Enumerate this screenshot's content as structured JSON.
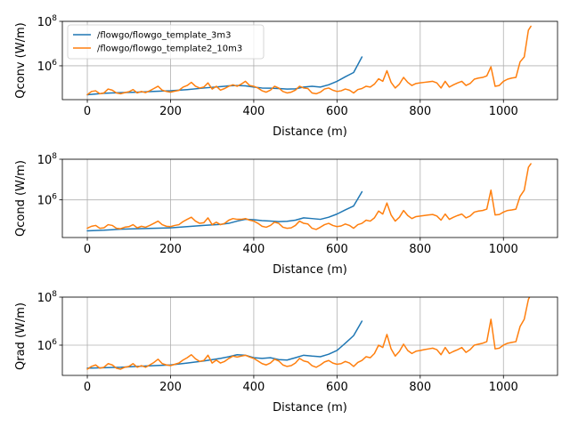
{
  "colors": {
    "series_0": "#1f77b4",
    "series_1": "#ff7f0e",
    "grid": "#b0b0b0"
  },
  "chart_data": [
    {
      "type": "line",
      "ylabel": "Qconv (W/m)",
      "xlabel": "Distance (m)",
      "yscale": "log",
      "grid": true,
      "xlim": [
        -60,
        1130
      ],
      "ylim": [
        30000,
        100000000
      ],
      "xticks": [
        0,
        200,
        400,
        600,
        800,
        1000
      ],
      "xtick_labels": [
        "0",
        "200",
        "400",
        "600",
        "800",
        "1000"
      ],
      "yticks": [
        1000000,
        100000000
      ],
      "ytick_labels": [
        "10^6",
        "10^8"
      ],
      "legend": {
        "placement": "upper-left",
        "entries": [
          "/flowgo/flowgo_template_3m3",
          "/flowgo/flowgo_template2_10m3"
        ]
      },
      "series": [
        {
          "name": "/flowgo/flowgo_template_3m3",
          "x": [
            0,
            40,
            80,
            120,
            160,
            200,
            240,
            280,
            320,
            340,
            360,
            380,
            400,
            420,
            440,
            460,
            480,
            500,
            520,
            540,
            560,
            580,
            600,
            620,
            640,
            660
          ],
          "y": [
            50000,
            58000,
            62000,
            65000,
            70000,
            75000,
            85000,
            100000,
            115000,
            125000,
            130000,
            125000,
            110000,
            100000,
            98000,
            95000,
            90000,
            92000,
            110000,
            120000,
            110000,
            140000,
            200000,
            320000,
            500000,
            2500000
          ]
        },
        {
          "name": "/flowgo/flowgo_template2_10m3",
          "x": [
            0,
            10,
            20,
            30,
            40,
            50,
            60,
            70,
            80,
            90,
            100,
            110,
            120,
            130,
            140,
            150,
            160,
            170,
            180,
            190,
            200,
            210,
            220,
            230,
            240,
            250,
            260,
            270,
            280,
            290,
            300,
            310,
            320,
            330,
            340,
            350,
            360,
            370,
            380,
            390,
            400,
            410,
            420,
            430,
            440,
            450,
            460,
            470,
            480,
            490,
            500,
            510,
            520,
            530,
            540,
            550,
            560,
            570,
            580,
            590,
            600,
            610,
            620,
            630,
            640,
            650,
            660,
            670,
            680,
            690,
            700,
            710,
            720,
            730,
            740,
            750,
            760,
            770,
            780,
            790,
            800,
            810,
            820,
            830,
            840,
            850,
            860,
            870,
            880,
            890,
            900,
            910,
            920,
            930,
            940,
            950,
            960,
            970,
            980,
            990,
            1000,
            1010,
            1020,
            1030,
            1040,
            1050,
            1060,
            1066
          ],
          "y": [
            50000,
            70000,
            75000,
            55000,
            60000,
            90000,
            80000,
            60000,
            55000,
            62000,
            68000,
            85000,
            60000,
            70000,
            62000,
            75000,
            95000,
            120000,
            80000,
            70000,
            65000,
            72000,
            78000,
            110000,
            130000,
            180000,
            120000,
            100000,
            110000,
            170000,
            90000,
            120000,
            80000,
            95000,
            120000,
            140000,
            120000,
            150000,
            200000,
            130000,
            120000,
            100000,
            75000,
            65000,
            80000,
            120000,
            100000,
            70000,
            60000,
            65000,
            80000,
            120000,
            100000,
            95000,
            60000,
            55000,
            65000,
            90000,
            100000,
            80000,
            70000,
            75000,
            90000,
            80000,
            60000,
            85000,
            95000,
            120000,
            110000,
            150000,
            260000,
            200000,
            600000,
            180000,
            100000,
            150000,
            300000,
            180000,
            130000,
            160000,
            170000,
            180000,
            190000,
            200000,
            170000,
            100000,
            200000,
            110000,
            140000,
            170000,
            200000,
            130000,
            160000,
            250000,
            280000,
            300000,
            350000,
            900000,
            120000,
            130000,
            200000,
            250000,
            280000,
            300000,
            1500000,
            2500000,
            40000000,
            60000000
          ]
        }
      ]
    },
    {
      "type": "line",
      "ylabel": "Qcond (W/m)",
      "xlabel": "Distance (m)",
      "yscale": "log",
      "grid": true,
      "xlim": [
        -60,
        1130
      ],
      "ylim": [
        14000,
        100000000
      ],
      "xticks": [
        0,
        200,
        400,
        600,
        800,
        1000
      ],
      "xtick_labels": [
        "0",
        "200",
        "400",
        "600",
        "800",
        "1000"
      ],
      "yticks": [
        1000000,
        100000000
      ],
      "ytick_labels": [
        "10^6",
        "10^8"
      ],
      "series": [
        {
          "name": "/flowgo/flowgo_template_3m3",
          "x": [
            0,
            40,
            80,
            120,
            160,
            200,
            240,
            280,
            320,
            340,
            360,
            380,
            400,
            420,
            440,
            460,
            480,
            500,
            520,
            540,
            560,
            580,
            600,
            620,
            640,
            660
          ],
          "y": [
            30000,
            32000,
            36000,
            38000,
            40000,
            42000,
            48000,
            55000,
            62000,
            70000,
            90000,
            110000,
            105000,
            95000,
            90000,
            85000,
            88000,
            100000,
            130000,
            120000,
            110000,
            140000,
            200000,
            320000,
            500000,
            2500000
          ]
        },
        {
          "name": "/flowgo/flowgo_template2_10m3",
          "x": [
            0,
            10,
            20,
            30,
            40,
            50,
            60,
            70,
            80,
            90,
            100,
            110,
            120,
            130,
            140,
            150,
            160,
            170,
            180,
            190,
            200,
            210,
            220,
            230,
            240,
            250,
            260,
            270,
            280,
            290,
            300,
            310,
            320,
            330,
            340,
            350,
            360,
            370,
            380,
            390,
            400,
            410,
            420,
            430,
            440,
            450,
            460,
            470,
            480,
            490,
            500,
            510,
            520,
            530,
            540,
            550,
            560,
            570,
            580,
            590,
            600,
            610,
            620,
            630,
            640,
            650,
            660,
            670,
            680,
            690,
            700,
            710,
            720,
            730,
            740,
            750,
            760,
            770,
            780,
            790,
            800,
            810,
            820,
            830,
            840,
            850,
            860,
            870,
            880,
            890,
            900,
            910,
            920,
            930,
            940,
            950,
            960,
            970,
            980,
            990,
            1000,
            1010,
            1020,
            1030,
            1040,
            1050,
            1060,
            1066
          ],
          "y": [
            40000,
            50000,
            55000,
            40000,
            42000,
            60000,
            55000,
            40000,
            38000,
            45000,
            48000,
            60000,
            42000,
            50000,
            45000,
            55000,
            70000,
            90000,
            60000,
            50000,
            48000,
            55000,
            60000,
            85000,
            110000,
            140000,
            90000,
            70000,
            75000,
            130000,
            60000,
            80000,
            60000,
            70000,
            100000,
            120000,
            110000,
            110000,
            120000,
            100000,
            90000,
            70000,
            50000,
            45000,
            55000,
            80000,
            70000,
            45000,
            40000,
            42000,
            55000,
            90000,
            70000,
            65000,
            40000,
            35000,
            45000,
            60000,
            70000,
            55000,
            48000,
            52000,
            65000,
            55000,
            40000,
            60000,
            70000,
            100000,
            90000,
            130000,
            280000,
            200000,
            700000,
            180000,
            90000,
            140000,
            300000,
            170000,
            120000,
            150000,
            160000,
            170000,
            180000,
            190000,
            160000,
            100000,
            200000,
            110000,
            140000,
            170000,
            200000,
            130000,
            160000,
            250000,
            280000,
            300000,
            350000,
            3000000,
            180000,
            190000,
            250000,
            300000,
            320000,
            350000,
            1500000,
            3000000,
            40000000,
            60000000
          ]
        }
      ]
    },
    {
      "type": "line",
      "ylabel": "Qrad (W/m)",
      "xlabel": "Distance (m)",
      "yscale": "log",
      "grid": true,
      "xlim": [
        -60,
        1130
      ],
      "ylim": [
        55000,
        100000000
      ],
      "xticks": [
        0,
        200,
        400,
        600,
        800,
        1000
      ],
      "xtick_labels": [
        "0",
        "200",
        "400",
        "600",
        "800",
        "1000"
      ],
      "yticks": [
        1000000,
        100000000
      ],
      "ytick_labels": [
        "10^6",
        "10^8"
      ],
      "series": [
        {
          "name": "/flowgo/flowgo_template_3m3",
          "x": [
            0,
            40,
            80,
            120,
            160,
            200,
            240,
            280,
            320,
            340,
            360,
            380,
            400,
            420,
            440,
            460,
            480,
            500,
            520,
            540,
            560,
            580,
            600,
            620,
            640,
            660
          ],
          "y": [
            110000,
            115000,
            120000,
            130000,
            140000,
            150000,
            180000,
            220000,
            280000,
            330000,
            400000,
            380000,
            300000,
            280000,
            300000,
            250000,
            240000,
            300000,
            380000,
            350000,
            330000,
            420000,
            600000,
            1200000,
            2500000,
            10000000
          ]
        },
        {
          "name": "/flowgo/flowgo_template2_10m3",
          "x": [
            0,
            10,
            20,
            30,
            40,
            50,
            60,
            70,
            80,
            90,
            100,
            110,
            120,
            130,
            140,
            150,
            160,
            170,
            180,
            190,
            200,
            210,
            220,
            230,
            240,
            250,
            260,
            270,
            280,
            290,
            300,
            310,
            320,
            330,
            340,
            350,
            360,
            370,
            380,
            390,
            400,
            410,
            420,
            430,
            440,
            450,
            460,
            470,
            480,
            490,
            500,
            510,
            520,
            530,
            540,
            550,
            560,
            570,
            580,
            590,
            600,
            610,
            620,
            630,
            640,
            650,
            660,
            670,
            680,
            690,
            700,
            710,
            720,
            730,
            740,
            750,
            760,
            770,
            780,
            790,
            800,
            810,
            820,
            830,
            840,
            850,
            860,
            870,
            880,
            890,
            900,
            910,
            920,
            930,
            940,
            950,
            960,
            970,
            980,
            990,
            1000,
            1010,
            1020,
            1030,
            1040,
            1050,
            1060,
            1066
          ],
          "y": [
            100000,
            130000,
            150000,
            110000,
            120000,
            170000,
            150000,
            110000,
            100000,
            120000,
            130000,
            170000,
            120000,
            140000,
            120000,
            150000,
            190000,
            260000,
            170000,
            150000,
            140000,
            160000,
            180000,
            240000,
            300000,
            400000,
            270000,
            210000,
            230000,
            380000,
            180000,
            240000,
            180000,
            210000,
            280000,
            350000,
            320000,
            350000,
            380000,
            320000,
            280000,
            220000,
            170000,
            150000,
            180000,
            260000,
            220000,
            150000,
            130000,
            140000,
            180000,
            280000,
            220000,
            200000,
            140000,
            120000,
            150000,
            200000,
            230000,
            180000,
            160000,
            170000,
            210000,
            180000,
            130000,
            190000,
            230000,
            330000,
            300000,
            450000,
            1000000,
            800000,
            2800000,
            700000,
            350000,
            550000,
            1100000,
            600000,
            450000,
            560000,
            600000,
            650000,
            700000,
            750000,
            650000,
            400000,
            800000,
            450000,
            550000,
            650000,
            800000,
            500000,
            650000,
            1000000,
            1100000,
            1200000,
            1400000,
            12000000,
            700000,
            750000,
            1000000,
            1200000,
            1300000,
            1400000,
            6000000,
            12000000,
            80000000,
            130000000
          ]
        }
      ]
    }
  ]
}
